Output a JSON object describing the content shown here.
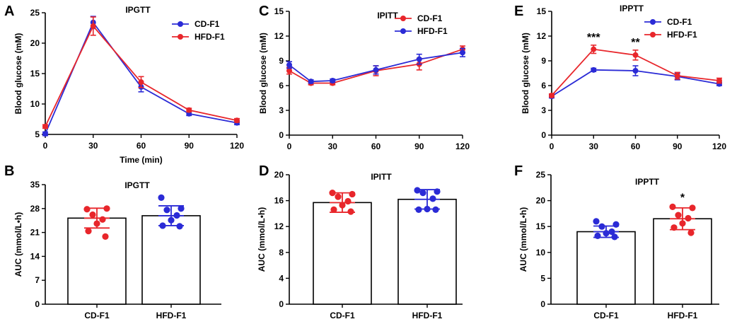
{
  "colors": {
    "blue": "#2b2bd6",
    "red": "#e8262b"
  },
  "chart_data": [
    {
      "panel": "A",
      "type": "line",
      "title": "IPGTT",
      "xlabel": "Time (min)",
      "ylabel": "Blood glucose (mM)",
      "x": [
        0,
        30,
        60,
        90,
        120
      ],
      "xticks": [
        "0",
        "30",
        "60",
        "90",
        "120"
      ],
      "ylim": [
        5,
        25
      ],
      "yticks": [
        "5",
        "10",
        "15",
        "20",
        "25"
      ],
      "legend": "top-right",
      "series": [
        {
          "name": "CD-F1",
          "color": "blue",
          "values": [
            5.1,
            23.4,
            12.8,
            8.4,
            6.9
          ],
          "err": [
            0.3,
            1.0,
            0.8,
            0.3,
            0.3
          ]
        },
        {
          "name": "HFD-F1",
          "color": "red",
          "values": [
            6.3,
            22.8,
            13.6,
            9.0,
            7.3
          ],
          "err": [
            0.3,
            1.5,
            0.9,
            0.3,
            0.3
          ]
        }
      ]
    },
    {
      "panel": "C",
      "type": "line",
      "title": "IPITT",
      "xlabel": "",
      "ylabel": "Blood glucose (mM)",
      "x": [
        0,
        15,
        30,
        60,
        90,
        120
      ],
      "xticks": [
        "0",
        "30",
        "60",
        "90",
        "120"
      ],
      "xtick_values": [
        0,
        30,
        60,
        90,
        120
      ],
      "ylim": [
        0,
        15
      ],
      "yticks": [
        "0",
        "3",
        "6",
        "9",
        "12",
        "15"
      ],
      "legend": "top-right",
      "series": [
        {
          "name": "CD-F1",
          "color": "red",
          "values": [
            7.8,
            6.3,
            6.3,
            7.8,
            8.6,
            10.4
          ],
          "err": [
            0.4,
            0.2,
            0.2,
            0.6,
            0.7,
            0.4
          ]
        },
        {
          "name": "HFD-F1",
          "color": "blue",
          "values": [
            8.5,
            6.5,
            6.6,
            7.9,
            9.2,
            10.0
          ],
          "err": [
            0.4,
            0.2,
            0.2,
            0.5,
            0.6,
            0.5
          ]
        }
      ]
    },
    {
      "panel": "E",
      "type": "line",
      "title": "IPPTT",
      "xlabel": "",
      "ylabel": "Blood glucose (mM)",
      "x": [
        0,
        30,
        60,
        90,
        120
      ],
      "xticks": [
        "0",
        "30",
        "60",
        "90",
        "120"
      ],
      "ylim": [
        0,
        15
      ],
      "yticks": [
        "0",
        "3",
        "6",
        "9",
        "12",
        "15"
      ],
      "legend": "top-right",
      "annotations": [
        {
          "x": 30,
          "text": "***"
        },
        {
          "x": 60,
          "text": "**"
        }
      ],
      "series": [
        {
          "name": "CD-F1",
          "color": "blue",
          "values": [
            4.7,
            7.9,
            7.8,
            7.1,
            6.2
          ],
          "err": [
            0.2,
            0.2,
            0.6,
            0.4,
            0.2
          ]
        },
        {
          "name": "HFD-F1",
          "color": "red",
          "values": [
            4.8,
            10.4,
            9.7,
            7.2,
            6.6
          ],
          "err": [
            0.2,
            0.5,
            0.6,
            0.4,
            0.3
          ]
        }
      ]
    },
    {
      "panel": "B",
      "type": "bar",
      "title": "IPGTT",
      "ylabel": "AUC (mmol/L•h)",
      "ylim": [
        0,
        35
      ],
      "yticks": [
        "0",
        "7",
        "14",
        "21",
        "28",
        "35"
      ],
      "categories": [
        "CD-F1",
        "HFD-F1"
      ],
      "bars": [
        {
          "color": "red",
          "mean": 25.2,
          "sd": 2.9,
          "points": [
            27.8,
            28.0,
            26.2,
            24.8,
            23.6,
            21.4,
            19.8
          ]
        },
        {
          "color": "blue",
          "mean": 25.9,
          "sd": 2.9,
          "points": [
            31.2,
            28.0,
            27.6,
            26.0,
            24.6,
            23.0,
            22.8
          ]
        }
      ]
    },
    {
      "panel": "D",
      "type": "bar",
      "title": "IPITT",
      "ylabel": "AUC  (mmol/L•h)",
      "ylim": [
        0,
        20
      ],
      "yticks": [
        "0",
        "4",
        "8",
        "12",
        "16",
        "20"
      ],
      "categories": [
        "CD-F1",
        "HFD-F1"
      ],
      "bars": [
        {
          "color": "red",
          "mean": 15.7,
          "sd": 1.5,
          "points": [
            17.2,
            17.0,
            16.6,
            15.9,
            15.3,
            14.6,
            14.3
          ]
        },
        {
          "color": "blue",
          "mean": 16.2,
          "sd": 1.5,
          "points": [
            17.6,
            17.4,
            17.2,
            16.3,
            14.7,
            14.6,
            14.6
          ]
        }
      ]
    },
    {
      "panel": "F",
      "type": "bar",
      "title": "IPPTT",
      "ylabel": "AUC (mmol/L•h)",
      "ylim": [
        0,
        25
      ],
      "yticks": [
        "0",
        "5",
        "10",
        "15",
        "20",
        "25"
      ],
      "categories": [
        "CD-F1",
        "HFD-F1"
      ],
      "annotations": [
        {
          "category": "HFD-F1",
          "text": "*"
        }
      ],
      "bars": [
        {
          "color": "blue",
          "mean": 14.0,
          "sd": 1.1,
          "points": [
            16.0,
            15.4,
            15.0,
            14.0,
            13.7,
            13.2,
            13.0
          ]
        },
        {
          "color": "red",
          "mean": 16.5,
          "sd": 2.1,
          "points": [
            18.8,
            18.6,
            17.2,
            16.6,
            15.6,
            14.8,
            13.8
          ]
        }
      ]
    }
  ]
}
